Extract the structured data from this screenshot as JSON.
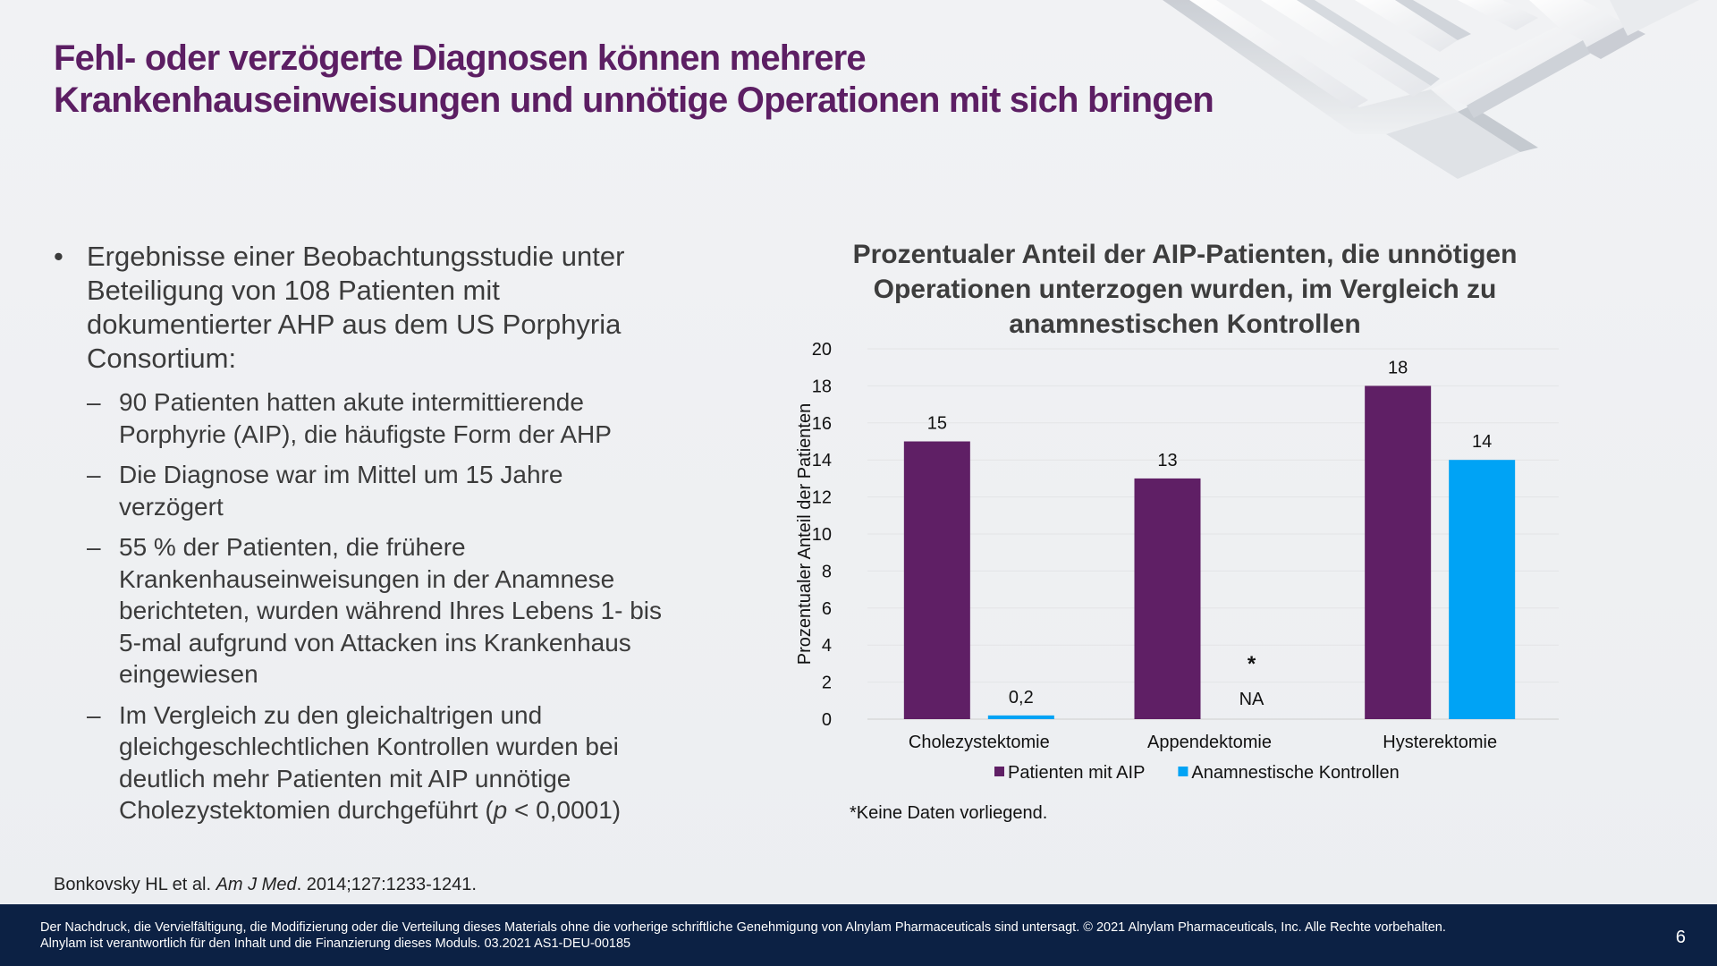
{
  "title": {
    "line1": "Fehl- oder verzögerte Diagnosen können mehrere",
    "line2": "Krankenhauseinweisungen und unnötige Operationen mit sich bringen"
  },
  "bullets": {
    "main": "Ergebnisse einer Beobachtungsstudie unter\nBeteiligung von 108 Patienten mit\ndokumentierter AHP aus dem US Porphyria\nConsortium:",
    "sub1": "90 Patienten hatten akute intermittierende\nPorphyrie (AIP), die häufigste Form der AHP",
    "sub2": "Die Diagnose war im Mittel um 15 Jahre\nverzögert",
    "sub3": "55 % der Patienten, die frühere\nKrankenhauseinweisungen in der Anamnese\nberichteten, wurden während Ihres Lebens 1- bis\n5-mal aufgrund von Attacken ins Krankenhaus\neingewiesen",
    "sub4a": "Im Vergleich zu den gleichaltrigen und\ngleichgeschlechtlichen Kontrollen wurden bei\ndeutlich mehr Patienten mit AIP unnötige\nCholezystektomien durchgeführt (",
    "sub4p": "p",
    "sub4b": " < 0,0001)"
  },
  "citation": {
    "authors": "Bonkovsky HL et al. ",
    "journal": "Am J Med",
    "rest": ". 2014;127:1233-1241."
  },
  "footer": {
    "text": "Der Nachdruck, die Vervielfältigung, die Modifizierung oder die Verteilung dieses Materials ohne die vorherige schriftliche Genehmigung von Alnylam Pharmaceuticals sind untersagt. © 2021 Alnylam Pharmaceuticals, Inc. Alle Rechte vorbehalten.\nAlnylam ist verantwortlich für den Inhalt und die Finanzierung dieses Moduls. 03.2021 AS1-DEU-00185",
    "page_number": "6"
  },
  "chart_data": {
    "type": "bar",
    "title": "Prozentualer Anteil der AIP-Patienten, die unnötigen\nOperationen unterzogen wurden, im Vergleich zu\nanamnestischen Kontrollen",
    "ylabel": "Prozentualer Anteil der Patienten",
    "xlabel": "",
    "ylim": [
      0,
      20
    ],
    "yticks": [
      "0",
      "2",
      "4",
      "6",
      "8",
      "10",
      "12",
      "14",
      "16",
      "18",
      "20"
    ],
    "categories": [
      "Cholezystektomie",
      "Appendektomie",
      "Hysterektomie"
    ],
    "series": [
      {
        "name": "Patienten mit AIP",
        "color": "#5f1f65",
        "values": [
          15,
          13,
          18
        ],
        "labels": [
          "15",
          "13",
          "18"
        ]
      },
      {
        "name": "Anamnestische Kontrollen",
        "color": "#00a3f5",
        "values": [
          0.2,
          null,
          14
        ],
        "labels": [
          "0,2",
          "NA",
          "14"
        ]
      }
    ],
    "annotations": [
      {
        "category": "Appendektomie",
        "series": "Anamnestische Kontrollen",
        "text": "*"
      }
    ],
    "grid": true,
    "legend": "bottom",
    "footnote": "*Keine Daten vorliegend."
  }
}
